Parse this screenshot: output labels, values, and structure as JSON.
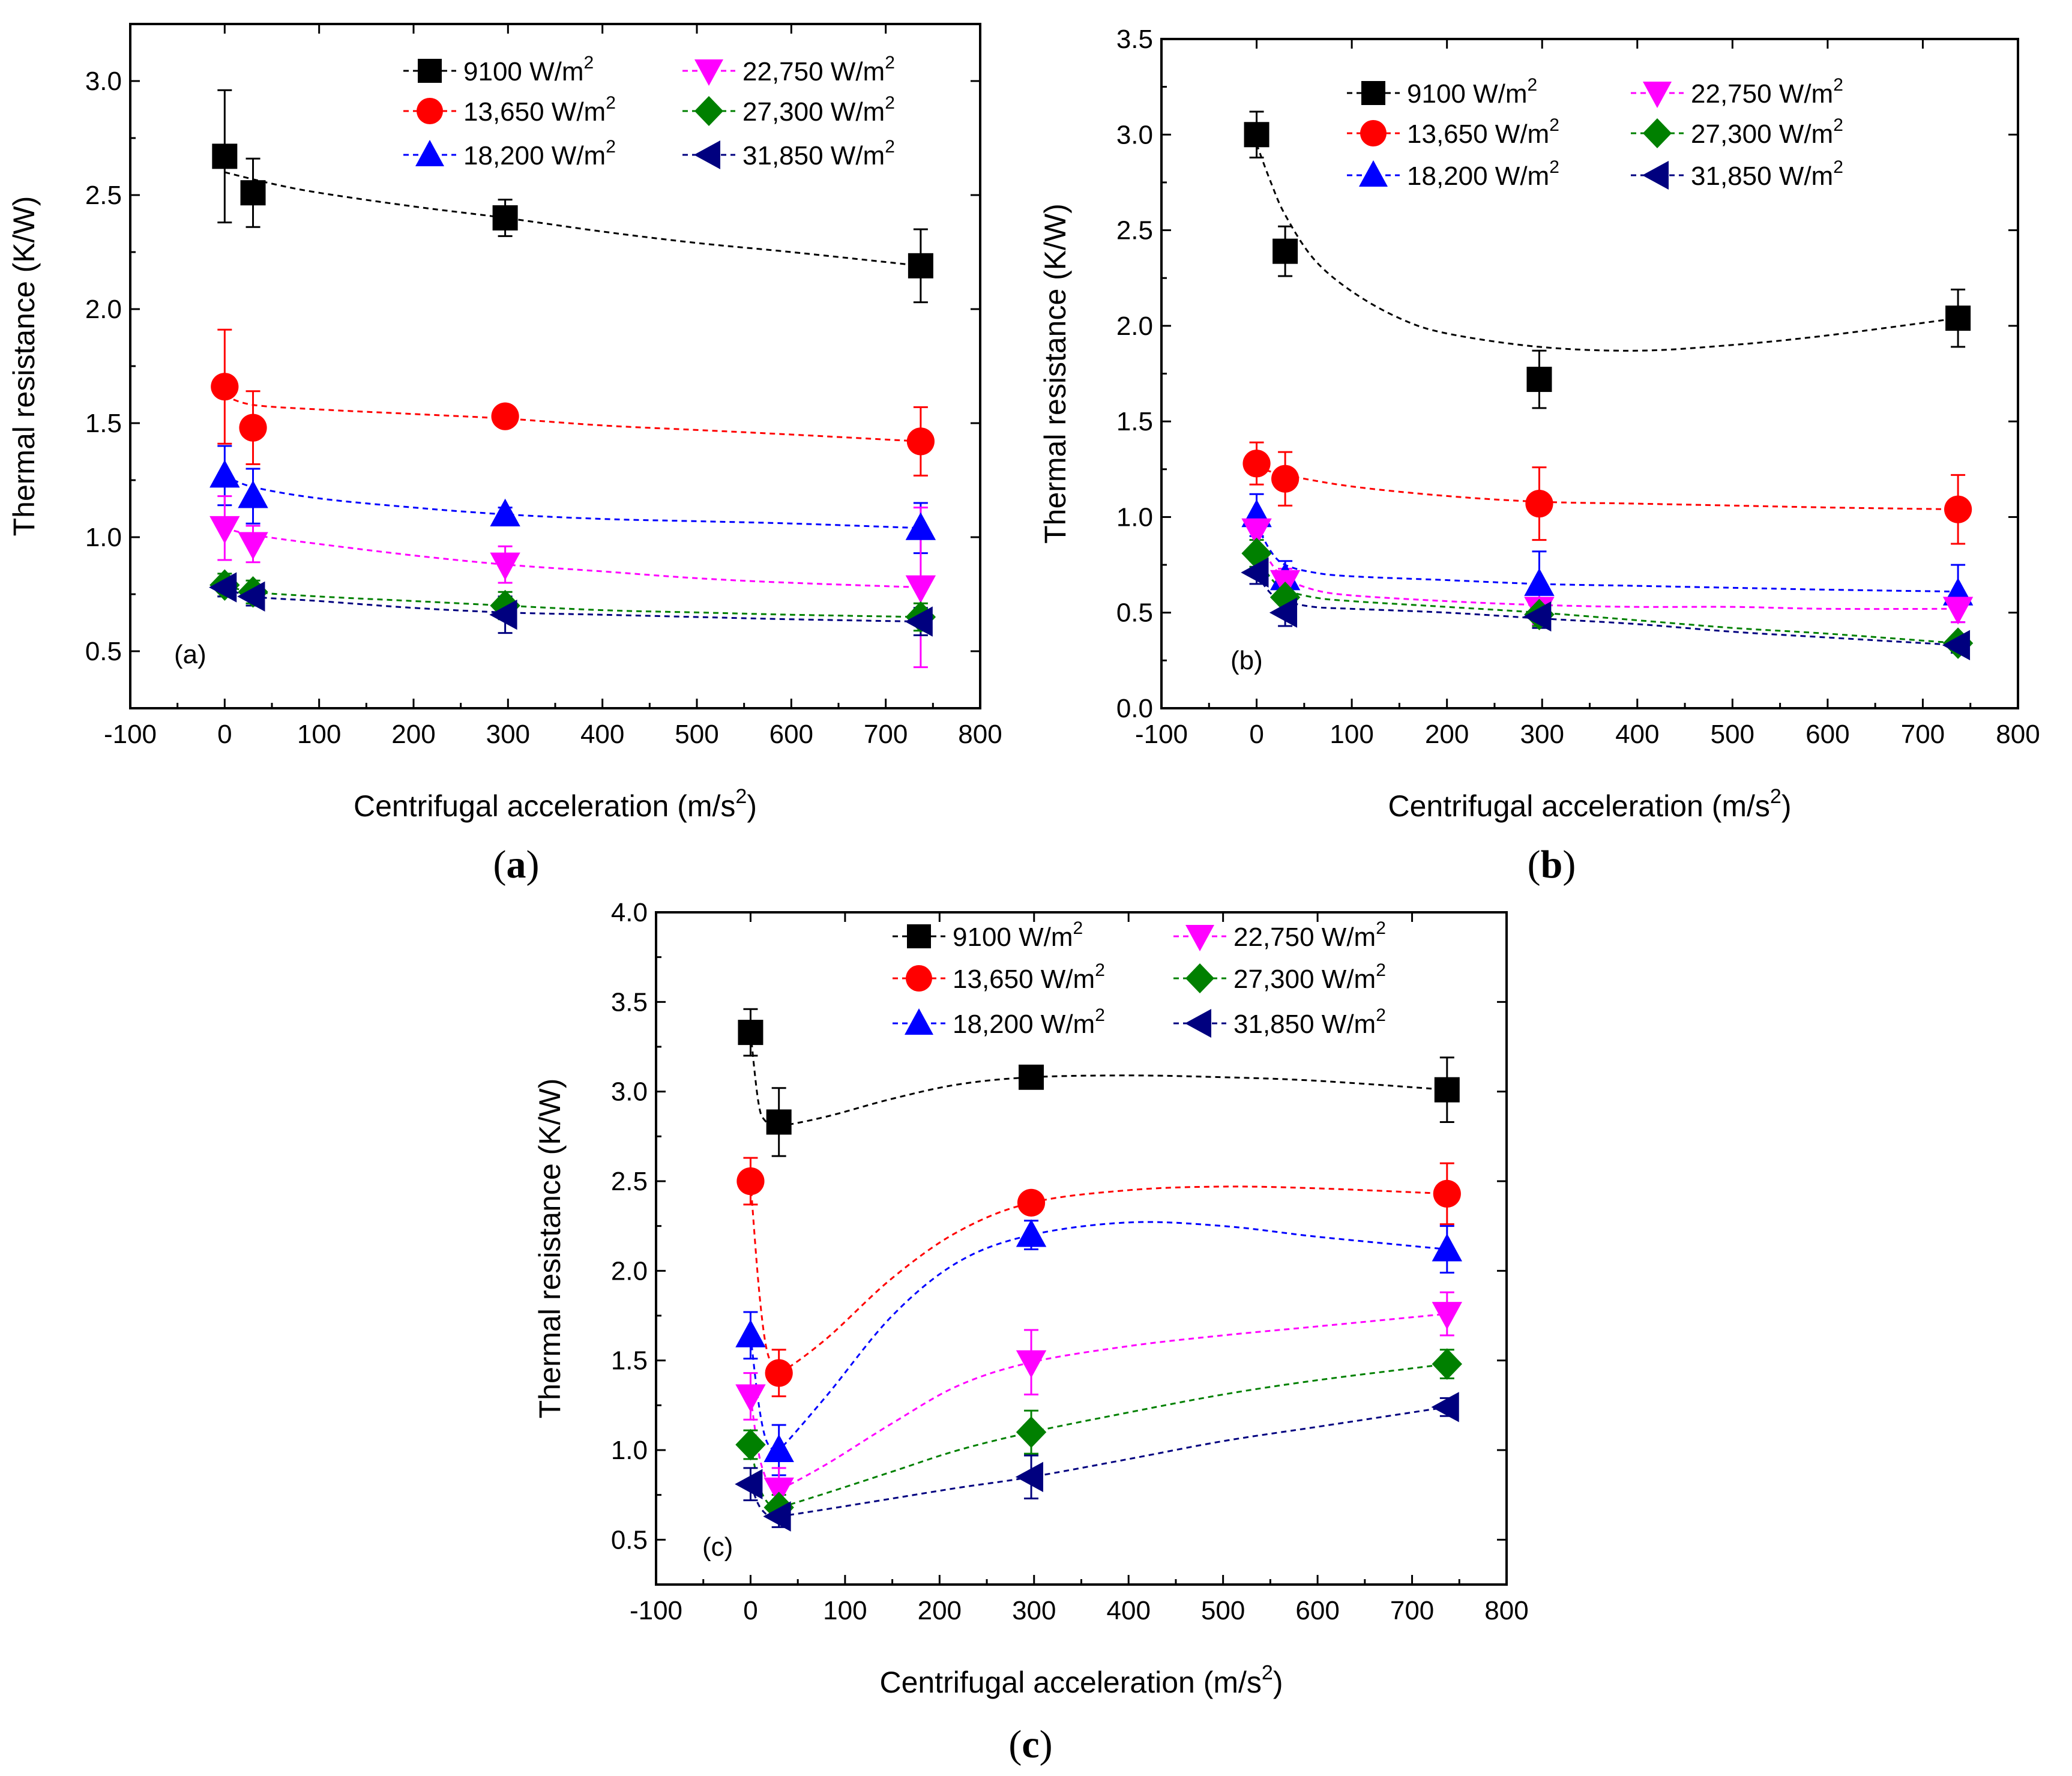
{
  "colors": {
    "q9100": "#000000",
    "q13650": "#ff0000",
    "q18200": "#0000ff",
    "q22750": "#ff00ff",
    "q27300": "#008000",
    "q31850": "#00007f"
  },
  "chart_data": [
    {
      "id": "a",
      "type": "scatter",
      "panel_tag": "(a)",
      "caption": {
        "open": "(",
        "letter": "a",
        "close": ")"
      },
      "xlabel": "Centrifugal acceleration (m/s",
      "xlabel_sup": "2",
      "xlabel_close": ")",
      "ylabel": "Thermal resistance (K/W)",
      "xlim": [
        -100,
        800
      ],
      "ylim": [
        0.25,
        3.25
      ],
      "x_ticks": [
        -100,
        0,
        100,
        200,
        300,
        400,
        500,
        600,
        700,
        800
      ],
      "y_ticks": [
        0.5,
        1.0,
        1.5,
        2.0,
        2.5,
        3.0
      ],
      "y_decimals": 1,
      "x": [
        0,
        30,
        297,
        737
      ],
      "series": [
        {
          "key": "q9100",
          "name": "9100 W/m",
          "sup": "2",
          "marker": "square",
          "values": [
            2.67,
            2.51,
            2.4,
            2.19
          ],
          "errors": [
            0.29,
            0.15,
            0.08,
            0.16
          ]
        },
        {
          "key": "q13650",
          "name": "13,650 W/m",
          "sup": "2",
          "marker": "circle",
          "values": [
            1.66,
            1.48,
            1.53,
            1.42
          ],
          "errors": [
            0.25,
            0.16,
            0.02,
            0.15
          ]
        },
        {
          "key": "q18200",
          "name": "18,200 W/m",
          "sup": "2",
          "marker": "triangle-up",
          "values": [
            1.27,
            1.18,
            1.1,
            1.04
          ],
          "errors": [
            0.13,
            0.12,
            0.03,
            0.11
          ]
        },
        {
          "key": "q22750",
          "name": "22,750 W/m",
          "sup": "2",
          "marker": "triangle-down",
          "values": [
            1.04,
            0.97,
            0.88,
            0.78
          ],
          "errors": [
            0.14,
            0.08,
            0.08,
            0.35
          ]
        },
        {
          "key": "q27300",
          "name": "27,300 W/m",
          "sup": "2",
          "marker": "diamond",
          "values": [
            0.79,
            0.76,
            0.7,
            0.65
          ],
          "errors": [
            0.05,
            0.05,
            0.06,
            0.06
          ]
        },
        {
          "key": "q31850",
          "name": "31,850 W/m",
          "sup": "2",
          "marker": "triangle-left",
          "values": [
            0.78,
            0.74,
            0.66,
            0.63
          ],
          "errors": [
            0.04,
            0.04,
            0.08,
            0.06
          ]
        }
      ],
      "fits": [
        {
          "key": "q9100",
          "x": [
            0,
            50,
            100,
            200,
            297,
            400,
            500,
            600,
            737
          ],
          "y": [
            2.6,
            2.55,
            2.51,
            2.45,
            2.4,
            2.34,
            2.29,
            2.25,
            2.19
          ]
        },
        {
          "key": "q13650",
          "x": [
            0,
            30,
            100,
            200,
            297,
            400,
            500,
            600,
            737
          ],
          "y": [
            1.62,
            1.58,
            1.56,
            1.54,
            1.52,
            1.49,
            1.47,
            1.45,
            1.42
          ]
        },
        {
          "key": "q18200",
          "x": [
            0,
            30,
            100,
            200,
            297,
            400,
            500,
            600,
            737
          ],
          "y": [
            1.27,
            1.22,
            1.17,
            1.13,
            1.1,
            1.08,
            1.07,
            1.06,
            1.04
          ]
        },
        {
          "key": "q22750",
          "x": [
            0,
            30,
            100,
            200,
            297,
            400,
            500,
            600,
            737
          ],
          "y": [
            1.04,
            1.01,
            0.97,
            0.92,
            0.88,
            0.85,
            0.82,
            0.8,
            0.78
          ]
        },
        {
          "key": "q27300",
          "x": [
            0,
            30,
            100,
            200,
            297,
            400,
            500,
            600,
            737
          ],
          "y": [
            0.79,
            0.76,
            0.74,
            0.72,
            0.7,
            0.68,
            0.67,
            0.66,
            0.65
          ]
        },
        {
          "key": "q31850",
          "x": [
            0,
            30,
            100,
            200,
            297,
            400,
            500,
            600,
            737
          ],
          "y": [
            0.78,
            0.74,
            0.72,
            0.69,
            0.67,
            0.66,
            0.65,
            0.64,
            0.63
          ]
        }
      ]
    },
    {
      "id": "b",
      "type": "scatter",
      "panel_tag": "(b)",
      "caption": {
        "open": "(",
        "letter": "b",
        "close": ")"
      },
      "xlabel": "Centrifugal acceleration (m/s",
      "xlabel_sup": "2",
      "xlabel_close": ")",
      "ylabel": "Thermal resistance (K/W)",
      "xlim": [
        -100,
        800
      ],
      "ylim": [
        0.0,
        3.5
      ],
      "x_ticks": [
        -100,
        0,
        100,
        200,
        300,
        400,
        500,
        600,
        700,
        800
      ],
      "y_ticks": [
        0.0,
        0.5,
        1.0,
        1.5,
        2.0,
        2.5,
        3.0,
        3.5
      ],
      "y_decimals": 1,
      "x": [
        0,
        30,
        297,
        737
      ],
      "series": [
        {
          "key": "q9100",
          "name": "9100 W/m",
          "sup": "2",
          "marker": "square",
          "values": [
            3.0,
            2.39,
            1.72,
            2.04
          ],
          "errors": [
            0.12,
            0.13,
            0.15,
            0.15
          ]
        },
        {
          "key": "q13650",
          "name": "13,650 W/m",
          "sup": "2",
          "marker": "circle",
          "values": [
            1.28,
            1.2,
            1.07,
            1.04
          ],
          "errors": [
            0.11,
            0.14,
            0.19,
            0.18
          ]
        },
        {
          "key": "q18200",
          "name": "18,200 W/m",
          "sup": "2",
          "marker": "triangle-up",
          "values": [
            1.01,
            0.68,
            0.65,
            0.6
          ],
          "errors": [
            0.11,
            0.09,
            0.17,
            0.15
          ]
        },
        {
          "key": "q22750",
          "name": "22,750 W/m",
          "sup": "2",
          "marker": "triangle-down",
          "values": [
            0.93,
            0.66,
            0.52,
            0.52
          ],
          "errors": [
            0.08,
            0.07,
            0.08,
            0.07
          ]
        },
        {
          "key": "q27300",
          "name": "27,300 W/m",
          "sup": "2",
          "marker": "diamond",
          "values": [
            0.81,
            0.58,
            0.49,
            0.34
          ],
          "errors": [
            0.07,
            0.07,
            0.06,
            0.04
          ]
        },
        {
          "key": "q31850",
          "name": "31,850 W/m",
          "sup": "2",
          "marker": "triangle-left",
          "values": [
            0.71,
            0.5,
            0.48,
            0.33
          ],
          "errors": [
            0.06,
            0.07,
            0.06,
            0.04
          ]
        }
      ],
      "fits": [
        {
          "key": "q9100",
          "x": [
            0,
            15,
            30,
            60,
            100,
            150,
            200,
            297,
            400,
            500,
            600,
            737
          ],
          "y": [
            2.95,
            2.75,
            2.58,
            2.35,
            2.18,
            2.04,
            1.96,
            1.89,
            1.87,
            1.9,
            1.95,
            2.04
          ]
        },
        {
          "key": "q13650",
          "x": [
            0,
            30,
            100,
            200,
            297,
            400,
            500,
            600,
            737
          ],
          "y": [
            1.26,
            1.22,
            1.16,
            1.11,
            1.08,
            1.07,
            1.06,
            1.05,
            1.04
          ]
        },
        {
          "key": "q18200",
          "x": [
            0,
            15,
            30,
            60,
            100,
            200,
            297,
            400,
            500,
            600,
            737
          ],
          "y": [
            0.96,
            0.82,
            0.75,
            0.71,
            0.69,
            0.67,
            0.65,
            0.64,
            0.63,
            0.62,
            0.61
          ]
        },
        {
          "key": "q22750",
          "x": [
            0,
            15,
            30,
            60,
            100,
            200,
            297,
            400,
            500,
            600,
            737
          ],
          "y": [
            0.9,
            0.76,
            0.68,
            0.62,
            0.59,
            0.56,
            0.54,
            0.53,
            0.53,
            0.52,
            0.52
          ]
        },
        {
          "key": "q27300",
          "x": [
            0,
            15,
            30,
            60,
            100,
            200,
            297,
            400,
            500,
            600,
            737
          ],
          "y": [
            0.8,
            0.68,
            0.62,
            0.58,
            0.56,
            0.53,
            0.5,
            0.46,
            0.42,
            0.39,
            0.34
          ]
        },
        {
          "key": "q31850",
          "x": [
            0,
            15,
            30,
            60,
            100,
            200,
            297,
            400,
            500,
            600,
            737
          ],
          "y": [
            0.7,
            0.6,
            0.56,
            0.53,
            0.52,
            0.5,
            0.47,
            0.44,
            0.4,
            0.37,
            0.33
          ]
        }
      ]
    },
    {
      "id": "c",
      "type": "scatter",
      "panel_tag": "(c)",
      "caption": {
        "open": "(",
        "letter": "c",
        "close": ")"
      },
      "xlabel": "Centrifugal acceleration (m/s",
      "xlabel_sup": "2",
      "xlabel_close": ")",
      "ylabel": "Thermal resistance (K/W)",
      "xlim": [
        -100,
        800
      ],
      "ylim": [
        0.25,
        4.0
      ],
      "x_ticks": [
        -100,
        0,
        100,
        200,
        300,
        400,
        500,
        600,
        700,
        800
      ],
      "y_ticks": [
        0.5,
        1.0,
        1.5,
        2.0,
        2.5,
        3.0,
        3.5,
        4.0
      ],
      "y_decimals": 1,
      "x": [
        0,
        30,
        297,
        737
      ],
      "series": [
        {
          "key": "q9100",
          "name": "9100 W/m",
          "sup": "2",
          "marker": "square",
          "values": [
            3.33,
            2.83,
            3.08,
            3.01
          ],
          "errors": [
            0.13,
            0.19,
            0.04,
            0.18
          ]
        },
        {
          "key": "q13650",
          "name": "13,650 W/m",
          "sup": "2",
          "marker": "circle",
          "values": [
            2.5,
            1.43,
            2.38,
            2.43
          ],
          "errors": [
            0.13,
            0.13,
            0.04,
            0.17
          ]
        },
        {
          "key": "q18200",
          "name": "18,200 W/m",
          "sup": "2",
          "marker": "triangle-up",
          "values": [
            1.64,
            1.0,
            2.2,
            2.12
          ],
          "errors": [
            0.13,
            0.14,
            0.08,
            0.13
          ]
        },
        {
          "key": "q22750",
          "name": "22,750 W/m",
          "sup": "2",
          "marker": "triangle-down",
          "values": [
            1.3,
            0.78,
            1.49,
            1.76
          ],
          "errors": [
            0.13,
            0.12,
            0.18,
            0.12
          ]
        },
        {
          "key": "q27300",
          "name": "27,300 W/m",
          "sup": "2",
          "marker": "diamond",
          "values": [
            1.03,
            0.68,
            1.1,
            1.48
          ],
          "errors": [
            0.08,
            0.07,
            0.12,
            0.08
          ]
        },
        {
          "key": "q31850",
          "name": "31,850 W/m",
          "sup": "2",
          "marker": "triangle-left",
          "values": [
            0.81,
            0.63,
            0.85,
            1.24
          ],
          "errors": [
            0.09,
            0.06,
            0.12,
            0.05
          ]
        }
      ],
      "fits": [
        {
          "key": "q9100",
          "x": [
            0,
            8,
            15,
            30,
            80,
            150,
            220,
            297,
            400,
            500,
            600,
            737
          ],
          "y": [
            3.33,
            2.95,
            2.84,
            2.81,
            2.86,
            2.96,
            3.04,
            3.08,
            3.09,
            3.08,
            3.06,
            3.01
          ]
        },
        {
          "key": "q13650",
          "x": [
            0,
            8,
            15,
            22,
            30,
            80,
            150,
            220,
            297,
            400,
            500,
            600,
            737
          ],
          "y": [
            2.5,
            1.95,
            1.62,
            1.48,
            1.43,
            1.62,
            1.96,
            2.22,
            2.38,
            2.45,
            2.47,
            2.46,
            2.43
          ]
        },
        {
          "key": "q18200",
          "x": [
            0,
            8,
            15,
            22,
            30,
            80,
            150,
            220,
            297,
            400,
            500,
            600,
            737
          ],
          "y": [
            1.64,
            1.28,
            1.08,
            1.01,
            1.0,
            1.3,
            1.75,
            2.05,
            2.2,
            2.27,
            2.25,
            2.19,
            2.12
          ]
        },
        {
          "key": "q22750",
          "x": [
            0,
            8,
            15,
            22,
            30,
            80,
            150,
            220,
            297,
            400,
            500,
            600,
            737
          ],
          "y": [
            1.3,
            1.0,
            0.86,
            0.8,
            0.78,
            0.92,
            1.15,
            1.36,
            1.49,
            1.58,
            1.64,
            1.69,
            1.76
          ]
        },
        {
          "key": "q27300",
          "x": [
            0,
            8,
            15,
            22,
            30,
            80,
            150,
            220,
            297,
            400,
            500,
            600,
            737
          ],
          "y": [
            1.03,
            0.82,
            0.73,
            0.69,
            0.68,
            0.76,
            0.88,
            1.0,
            1.1,
            1.21,
            1.31,
            1.39,
            1.48
          ]
        },
        {
          "key": "q31850",
          "x": [
            0,
            8,
            15,
            22,
            30,
            80,
            150,
            220,
            297,
            400,
            500,
            600,
            737
          ],
          "y": [
            0.81,
            0.7,
            0.65,
            0.63,
            0.63,
            0.67,
            0.73,
            0.79,
            0.85,
            0.95,
            1.05,
            1.13,
            1.24
          ]
        }
      ]
    }
  ]
}
